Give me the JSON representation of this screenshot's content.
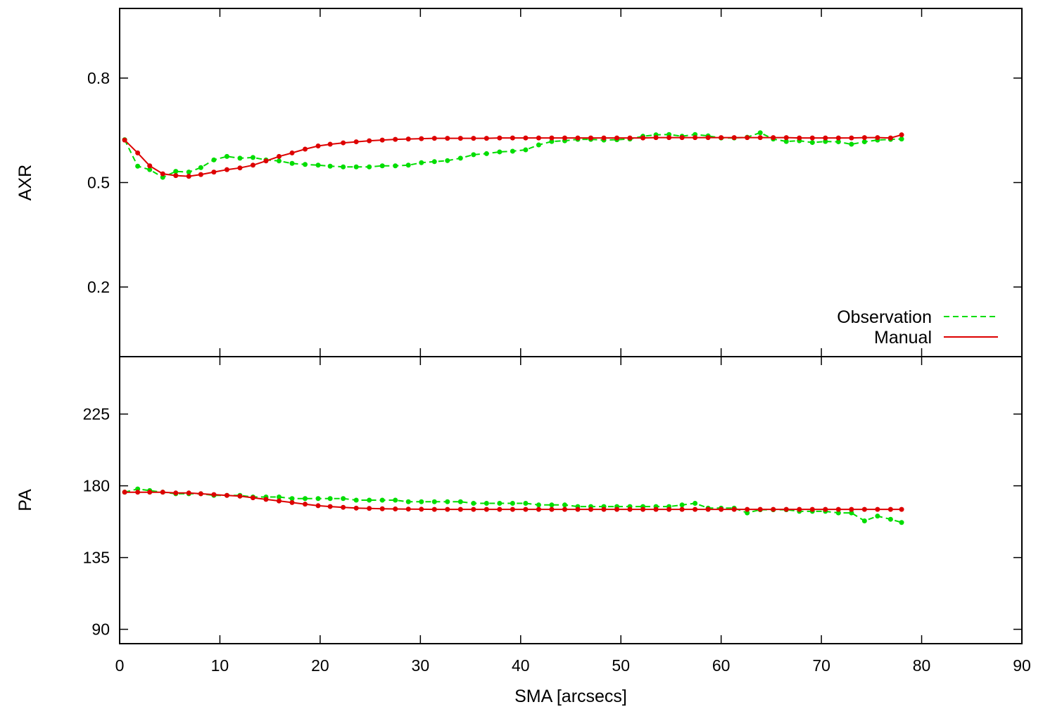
{
  "chart_data": [
    {
      "type": "line",
      "panel": "top",
      "xlabel": "",
      "ylabel": "AXR",
      "xlim": [
        0,
        90
      ],
      "ylim": [
        0.0,
        1.0
      ],
      "yticks": [
        0.2,
        0.5,
        0.8
      ],
      "ytick_labels": [
        "0.2",
        "0.5",
        "0.8"
      ],
      "legend": {
        "placement": "bottom-right"
      },
      "series": [
        {
          "name": "Observation",
          "color": "#00dd00",
          "style": "dashed",
          "x": [
            0.5,
            1.8,
            3.0,
            4.3,
            5.6,
            6.9,
            8.1,
            9.4,
            10.7,
            12.0,
            13.3,
            14.6,
            15.9,
            17.2,
            18.5,
            19.8,
            21.0,
            22.3,
            23.6,
            24.9,
            26.2,
            27.5,
            28.8,
            30.1,
            31.4,
            32.7,
            34.0,
            35.3,
            36.6,
            37.9,
            39.2,
            40.5,
            41.8,
            43.1,
            44.4,
            45.7,
            47.0,
            48.3,
            49.6,
            50.9,
            52.2,
            53.5,
            54.8,
            56.1,
            57.4,
            58.7,
            60.0,
            61.3,
            62.6,
            63.9,
            65.2,
            66.5,
            67.8,
            69.1,
            70.4,
            71.7,
            73.0,
            74.3,
            75.6,
            76.9,
            78.0
          ],
          "y": [
            0.623,
            0.547,
            0.537,
            0.515,
            0.532,
            0.53,
            0.543,
            0.565,
            0.575,
            0.57,
            0.572,
            0.565,
            0.562,
            0.555,
            0.552,
            0.55,
            0.547,
            0.545,
            0.545,
            0.545,
            0.548,
            0.548,
            0.55,
            0.557,
            0.56,
            0.563,
            0.57,
            0.58,
            0.583,
            0.588,
            0.59,
            0.594,
            0.608,
            0.618,
            0.62,
            0.624,
            0.624,
            0.622,
            0.623,
            0.625,
            0.633,
            0.637,
            0.638,
            0.633,
            0.638,
            0.634,
            0.628,
            0.628,
            0.63,
            0.643,
            0.625,
            0.618,
            0.62,
            0.615,
            0.618,
            0.617,
            0.61,
            0.617,
            0.622,
            0.624,
            0.625
          ]
        },
        {
          "name": "Manual",
          "color": "#dd0000",
          "style": "solid",
          "x": [
            0.5,
            1.8,
            3.0,
            4.3,
            5.6,
            6.9,
            8.1,
            9.4,
            10.7,
            12.0,
            13.3,
            14.6,
            15.9,
            17.2,
            18.5,
            19.8,
            21.0,
            22.3,
            23.6,
            24.9,
            26.2,
            27.5,
            28.8,
            30.1,
            31.4,
            32.7,
            34.0,
            35.3,
            36.6,
            37.9,
            39.2,
            40.5,
            41.8,
            43.1,
            44.4,
            45.7,
            47.0,
            48.3,
            49.6,
            50.9,
            52.2,
            53.5,
            54.8,
            56.1,
            57.4,
            58.7,
            60.0,
            61.3,
            62.6,
            63.9,
            65.2,
            66.5,
            67.8,
            69.1,
            70.4,
            71.7,
            73.0,
            74.3,
            75.6,
            76.9,
            78.0
          ],
          "y": [
            0.622,
            0.585,
            0.548,
            0.525,
            0.52,
            0.518,
            0.523,
            0.53,
            0.537,
            0.542,
            0.55,
            0.562,
            0.575,
            0.585,
            0.596,
            0.605,
            0.61,
            0.614,
            0.617,
            0.62,
            0.622,
            0.624,
            0.625,
            0.626,
            0.627,
            0.627,
            0.627,
            0.627,
            0.627,
            0.628,
            0.628,
            0.628,
            0.628,
            0.628,
            0.628,
            0.628,
            0.628,
            0.628,
            0.628,
            0.628,
            0.628,
            0.629,
            0.629,
            0.629,
            0.629,
            0.629,
            0.629,
            0.629,
            0.629,
            0.629,
            0.629,
            0.629,
            0.628,
            0.628,
            0.628,
            0.628,
            0.628,
            0.629,
            0.629,
            0.628,
            0.637
          ]
        }
      ]
    },
    {
      "type": "line",
      "panel": "bottom",
      "xlabel": "SMA [arcsecs]",
      "ylabel": "PA",
      "xlim": [
        0,
        90
      ],
      "ylim": [
        81,
        261
      ],
      "xticks": [
        0,
        10,
        20,
        30,
        40,
        50,
        60,
        70,
        80,
        90
      ],
      "xtick_labels": [
        "0",
        "10",
        "20",
        "30",
        "40",
        "50",
        "60",
        "70",
        "80",
        "90"
      ],
      "yticks": [
        90,
        135,
        180,
        225
      ],
      "ytick_labels": [
        "90",
        "135",
        "180",
        "225"
      ],
      "series": [
        {
          "name": "Observation",
          "color": "#00dd00",
          "style": "dashed",
          "x": [
            0.5,
            1.8,
            3.0,
            4.3,
            5.6,
            6.9,
            8.1,
            9.4,
            10.7,
            12.0,
            13.3,
            14.6,
            15.9,
            17.2,
            18.5,
            19.8,
            21.0,
            22.3,
            23.6,
            24.9,
            26.2,
            27.5,
            28.8,
            30.1,
            31.4,
            32.7,
            34.0,
            35.3,
            36.6,
            37.9,
            39.2,
            40.5,
            41.8,
            43.1,
            44.4,
            45.7,
            47.0,
            48.3,
            49.6,
            50.9,
            52.2,
            53.5,
            54.8,
            56.1,
            57.4,
            58.7,
            60.0,
            61.3,
            62.6,
            63.9,
            65.2,
            66.5,
            67.8,
            69.1,
            70.4,
            71.7,
            73.0,
            74.3,
            75.6,
            76.9,
            78.0
          ],
          "y": [
            176,
            178,
            177,
            176,
            175,
            175,
            175,
            174,
            174,
            174,
            173,
            173,
            173,
            172,
            172,
            172,
            172,
            172,
            171,
            171,
            171,
            171,
            170,
            170,
            170,
            170,
            170,
            169,
            169,
            169,
            169,
            169,
            168,
            168,
            168,
            167,
            167,
            167,
            167,
            167,
            167,
            167,
            167,
            168,
            169,
            166,
            166,
            166,
            163,
            165,
            165,
            165,
            164,
            164,
            164,
            163,
            163,
            158,
            161,
            159,
            157
          ]
        },
        {
          "name": "Manual",
          "color": "#dd0000",
          "style": "solid",
          "x": [
            0.5,
            1.8,
            3.0,
            4.3,
            5.6,
            6.9,
            8.1,
            9.4,
            10.7,
            12.0,
            13.3,
            14.6,
            15.9,
            17.2,
            18.5,
            19.8,
            21.0,
            22.3,
            23.6,
            24.9,
            26.2,
            27.5,
            28.8,
            30.1,
            31.4,
            32.7,
            34.0,
            35.3,
            36.6,
            37.9,
            39.2,
            40.5,
            41.8,
            43.1,
            44.4,
            45.7,
            47.0,
            48.3,
            49.6,
            50.9,
            52.2,
            53.5,
            54.8,
            56.1,
            57.4,
            58.7,
            60.0,
            61.3,
            62.6,
            63.9,
            65.2,
            66.5,
            67.8,
            69.1,
            70.4,
            71.7,
            73.0,
            74.3,
            75.6,
            76.9,
            78.0
          ],
          "y": [
            176,
            176,
            176,
            176,
            175.5,
            175.5,
            175,
            174.5,
            174,
            173.5,
            172.5,
            171.5,
            170.5,
            169.5,
            168.5,
            167.5,
            167,
            166.5,
            166,
            165.8,
            165.6,
            165.5,
            165.4,
            165.3,
            165.2,
            165.2,
            165.2,
            165.2,
            165.2,
            165.2,
            165.2,
            165.2,
            165.2,
            165.2,
            165.2,
            165.2,
            165.2,
            165.2,
            165.2,
            165.2,
            165.2,
            165.2,
            165.2,
            165.2,
            165.2,
            165.2,
            165.2,
            165.2,
            165.2,
            165.2,
            165.2,
            165.2,
            165.2,
            165.2,
            165.2,
            165.2,
            165.2,
            165.2,
            165.2,
            165.2,
            165.2
          ]
        }
      ]
    }
  ]
}
